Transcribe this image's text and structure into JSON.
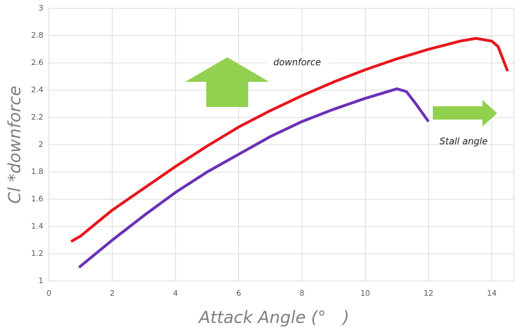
{
  "chart_data": {
    "type": "line",
    "x_label": "Attack Angle (°　)",
    "y_label": "Cl *downforce",
    "annotations": [
      "downforce",
      "Stall angle"
    ],
    "xlim": [
      0,
      14.7
    ],
    "xticks": [
      0,
      2,
      4,
      6,
      8,
      10,
      12,
      14
    ],
    "ylim": [
      1,
      3
    ],
    "yticks": [
      1,
      1.2,
      1.4,
      1.6,
      1.8,
      2,
      2.2,
      2.4,
      2.6,
      2.8,
      3
    ],
    "grid": true,
    "series": [
      {
        "color": "#e8141b",
        "x": [
          0.7,
          1,
          2,
          3,
          4,
          5,
          6,
          7,
          8,
          9,
          10,
          11,
          12,
          13,
          13.5,
          14,
          14.2,
          14.5
        ],
        "values": [
          1.29,
          1.33,
          1.52,
          1.68,
          1.84,
          1.99,
          2.13,
          2.25,
          2.36,
          2.46,
          2.55,
          2.63,
          2.7,
          2.76,
          2.78,
          2.76,
          2.72,
          2.54
        ]
      },
      {
        "color": "#6a2fb5",
        "x": [
          0.95,
          2,
          3,
          4,
          5,
          6,
          7,
          8,
          9,
          10,
          11,
          11.3,
          11.6,
          12
        ],
        "values": [
          1.1,
          1.3,
          1.48,
          1.65,
          1.8,
          1.93,
          2.06,
          2.17,
          2.26,
          2.34,
          2.41,
          2.39,
          2.3,
          2.17
        ]
      }
    ]
  }
}
